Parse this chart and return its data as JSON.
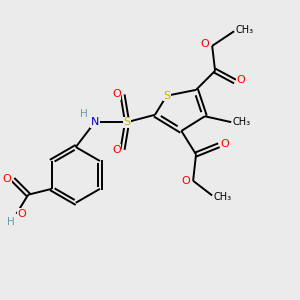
{
  "bg_color": "#ebebeb",
  "atom_colors": {
    "S_thiophene": "#c8b400",
    "S_sulfonyl": "#c8b400",
    "O": "#ff0000",
    "N": "#0000cd",
    "H": "#5f9ea0",
    "C": "#000000"
  },
  "bond_color": "#000000",
  "bond_width": 1.4,
  "xlim": [
    0,
    10
  ],
  "ylim": [
    0,
    10
  ]
}
